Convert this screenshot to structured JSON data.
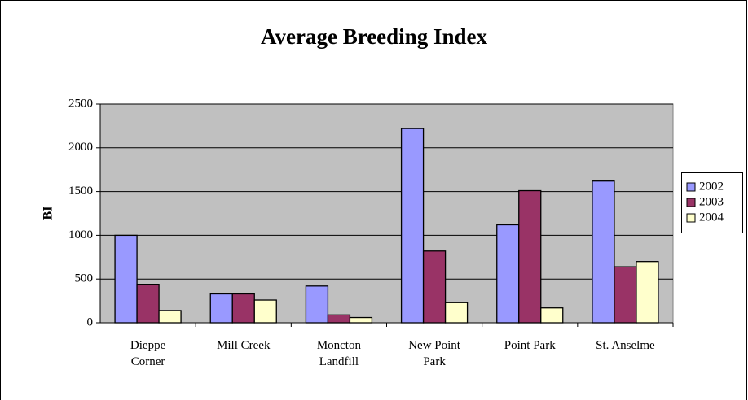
{
  "chart_data": {
    "type": "bar",
    "title": "Average Breeding Index",
    "y_label": "BI",
    "categories": [
      "Dieppe Corner",
      "Mill Creek",
      "Moncton Landfill",
      "New Point Park",
      "Point Park",
      "St. Anselme"
    ],
    "series": [
      {
        "name": "2002",
        "color": "#9999ff",
        "values": [
          1000,
          330,
          420,
          2220,
          1120,
          1620
        ]
      },
      {
        "name": "2003",
        "color": "#993366",
        "values": [
          440,
          330,
          90,
          820,
          1510,
          640
        ]
      },
      {
        "name": "2004",
        "color": "#ffffcc",
        "values": [
          140,
          260,
          60,
          230,
          170,
          700
        ]
      }
    ],
    "ylim": [
      0,
      2500
    ],
    "yticks": [
      0,
      500,
      1000,
      1500,
      2000,
      2500
    ],
    "grid": true,
    "legend": "right"
  }
}
